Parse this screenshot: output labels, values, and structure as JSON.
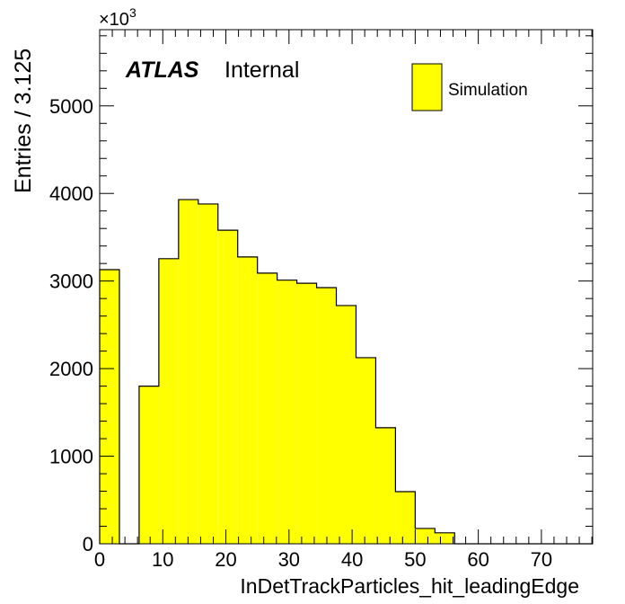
{
  "chart_data": {
    "type": "bar",
    "title": "",
    "xlabel": "InDetTrackParticles_hit_leadingEdge",
    "ylabel": "Entries / 3.125",
    "y_multiplier_label": "×10",
    "y_multiplier_exp": "3",
    "xlim": [
      0,
      78.125
    ],
    "ylim": [
      0,
      5870
    ],
    "bin_width": 3.125,
    "bin_edges_start": 0,
    "values": [
      3130,
      0,
      1800,
      3255,
      3930,
      3880,
      3580,
      3275,
      3090,
      3010,
      2975,
      2925,
      2720,
      2125,
      1325,
      595,
      175,
      125,
      0,
      0,
      0,
      0,
      0,
      0,
      0
    ],
    "xticks": [
      0,
      10,
      20,
      30,
      40,
      50,
      60,
      70
    ],
    "xtick_labels": [
      "0",
      "10",
      "20",
      "30",
      "40",
      "50",
      "60",
      "70"
    ],
    "yticks": [
      0,
      1000,
      2000,
      3000,
      4000,
      5000
    ],
    "ytick_labels": [
      "0",
      "1000",
      "2000",
      "3000",
      "4000",
      "5000"
    ],
    "fill_color": "#ffff00",
    "line_color": "#000000",
    "legend": {
      "placement": "top-right",
      "entries": [
        "Simulation"
      ]
    },
    "annotations": {
      "atlas": "ATLAS",
      "status": "Internal"
    },
    "grid": false
  }
}
